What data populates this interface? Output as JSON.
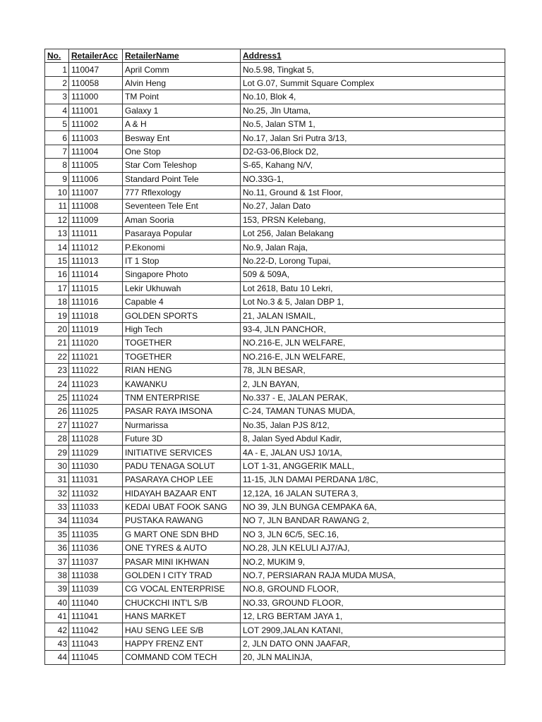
{
  "headers": {
    "no": "No.",
    "acc": "RetailerAcc",
    "name": "RetailerName",
    "address": "Address1"
  },
  "rows": [
    [
      "1",
      "110047",
      "April Comm",
      "No.5.98, Tingkat 5,"
    ],
    [
      "2",
      "110058",
      "Alvin Heng",
      "Lot G.07, Summit Square Complex"
    ],
    [
      "3",
      "111000",
      "TM Point",
      "No.10, Blok 4,"
    ],
    [
      "4",
      "111001",
      "Galaxy 1",
      "No.25, Jln Utama,"
    ],
    [
      "5",
      "111002",
      "A & H",
      "No.5, Jalan STM 1,"
    ],
    [
      "6",
      "111003",
      "Besway Ent",
      "No.17, Jalan Sri Putra 3/13,"
    ],
    [
      "7",
      "111004",
      "One Stop",
      "D2-G3-06,Block D2,"
    ],
    [
      "8",
      "111005",
      "Star Com Teleshop",
      "S-65, Kahang N/V,"
    ],
    [
      "9",
      "111006",
      "Standard Point Tele",
      "NO.33G-1,"
    ],
    [
      "10",
      "111007",
      "777 Rflexology",
      "No.11, Ground & 1st Floor,"
    ],
    [
      "11",
      "111008",
      "Seventeen Tele Ent",
      "No.27, Jalan Dato"
    ],
    [
      "12",
      "111009",
      "Aman Sooria",
      "153, PRSN Kelebang,"
    ],
    [
      "13",
      "111011",
      "Pasaraya Popular",
      "Lot 256, Jalan Belakang"
    ],
    [
      "14",
      "111012",
      "P.Ekonomi",
      "No.9, Jalan Raja,"
    ],
    [
      "15",
      "111013",
      "IT 1 Stop",
      "No.22-D, Lorong Tupai,"
    ],
    [
      "16",
      "111014",
      "Singapore Photo",
      "509 & 509A,"
    ],
    [
      "17",
      "111015",
      "Lekir Ukhuwah",
      "Lot 2618, Batu 10 Lekri,"
    ],
    [
      "18",
      "111016",
      "Capable 4",
      "Lot No.3 & 5, Jalan DBP 1,"
    ],
    [
      "19",
      "111018",
      "GOLDEN SPORTS",
      "21, JALAN ISMAIL,"
    ],
    [
      "20",
      "111019",
      "High Tech",
      "93-4, JLN PANCHOR,"
    ],
    [
      "21",
      "111020",
      "TOGETHER",
      "NO.216-E, JLN WELFARE,"
    ],
    [
      "22",
      "111021",
      "TOGETHER",
      "NO.216-E, JLN WELFARE,"
    ],
    [
      "23",
      "111022",
      "RIAN HENG",
      "78, JLN BESAR,"
    ],
    [
      "24",
      "111023",
      "KAWANKU",
      "2, JLN BAYAN,"
    ],
    [
      "25",
      "111024",
      "TNM ENTERPRISE",
      "No.337 - E, JALAN PERAK,"
    ],
    [
      "26",
      "111025",
      "PASAR RAYA IMSONA",
      "C-24, TAMAN TUNAS MUDA,"
    ],
    [
      "27",
      "111027",
      "Nurmarissa",
      "No.35, Jalan PJS 8/12,"
    ],
    [
      "28",
      "111028",
      "Future 3D",
      "8, Jalan Syed Abdul Kadir,"
    ],
    [
      "29",
      "111029",
      "INITIATIVE SERVICES",
      "4A - E, JALAN USJ 10/1A,"
    ],
    [
      "30",
      "111030",
      "PADU TENAGA SOLUT",
      "LOT 1-31, ANGGERIK MALL,"
    ],
    [
      "31",
      "111031",
      "PASARAYA CHOP LEE",
      "11-15, JLN DAMAI PERDANA 1/8C,"
    ],
    [
      "32",
      "111032",
      "HIDAYAH BAZAAR ENT",
      "12,12A, 16 JALAN SUTERA 3,"
    ],
    [
      "33",
      "111033",
      "KEDAI UBAT FOOK SANG",
      "NO 39, JLN BUNGA CEMPAKA 6A,"
    ],
    [
      "34",
      "111034",
      "PUSTAKA RAWANG",
      "NO 7, JLN BANDAR RAWANG 2,"
    ],
    [
      "35",
      "111035",
      "G MART ONE SDN BHD",
      "NO 3, JLN 6C/5, SEC.16,"
    ],
    [
      "36",
      "111036",
      "ONE TYRES & AUTO",
      "NO.28, JLN KELULI AJ7/AJ,"
    ],
    [
      "37",
      "111037",
      "PASAR MINI IKHWAN",
      "NO.2, MUKIM 9,"
    ],
    [
      "38",
      "111038",
      "GOLDEN I CITY TRAD",
      "NO.7, PERSIARAN RAJA MUDA MUSA,"
    ],
    [
      "39",
      "111039",
      "CG VOCAL ENTERPRISE",
      "NO.8, GROUND FLOOR,"
    ],
    [
      "40",
      "111040",
      "CHUCKCHI INT'L S/B",
      "NO.33, GROUND FLOOR,"
    ],
    [
      "41",
      "111041",
      "HANS MARKET",
      "12, LRG BERTAM JAYA 1,"
    ],
    [
      "42",
      "111042",
      "HAU SENG LEE S/B",
      "LOT 2909,JALAN KATANI,"
    ],
    [
      "43",
      "111043",
      "HAPPY FRENZ ENT",
      "2, JLN DATO ONN JAAFAR,"
    ],
    [
      "44",
      "111045",
      "COMMAND COM TECH",
      "20, JLN MALINJA,"
    ]
  ]
}
